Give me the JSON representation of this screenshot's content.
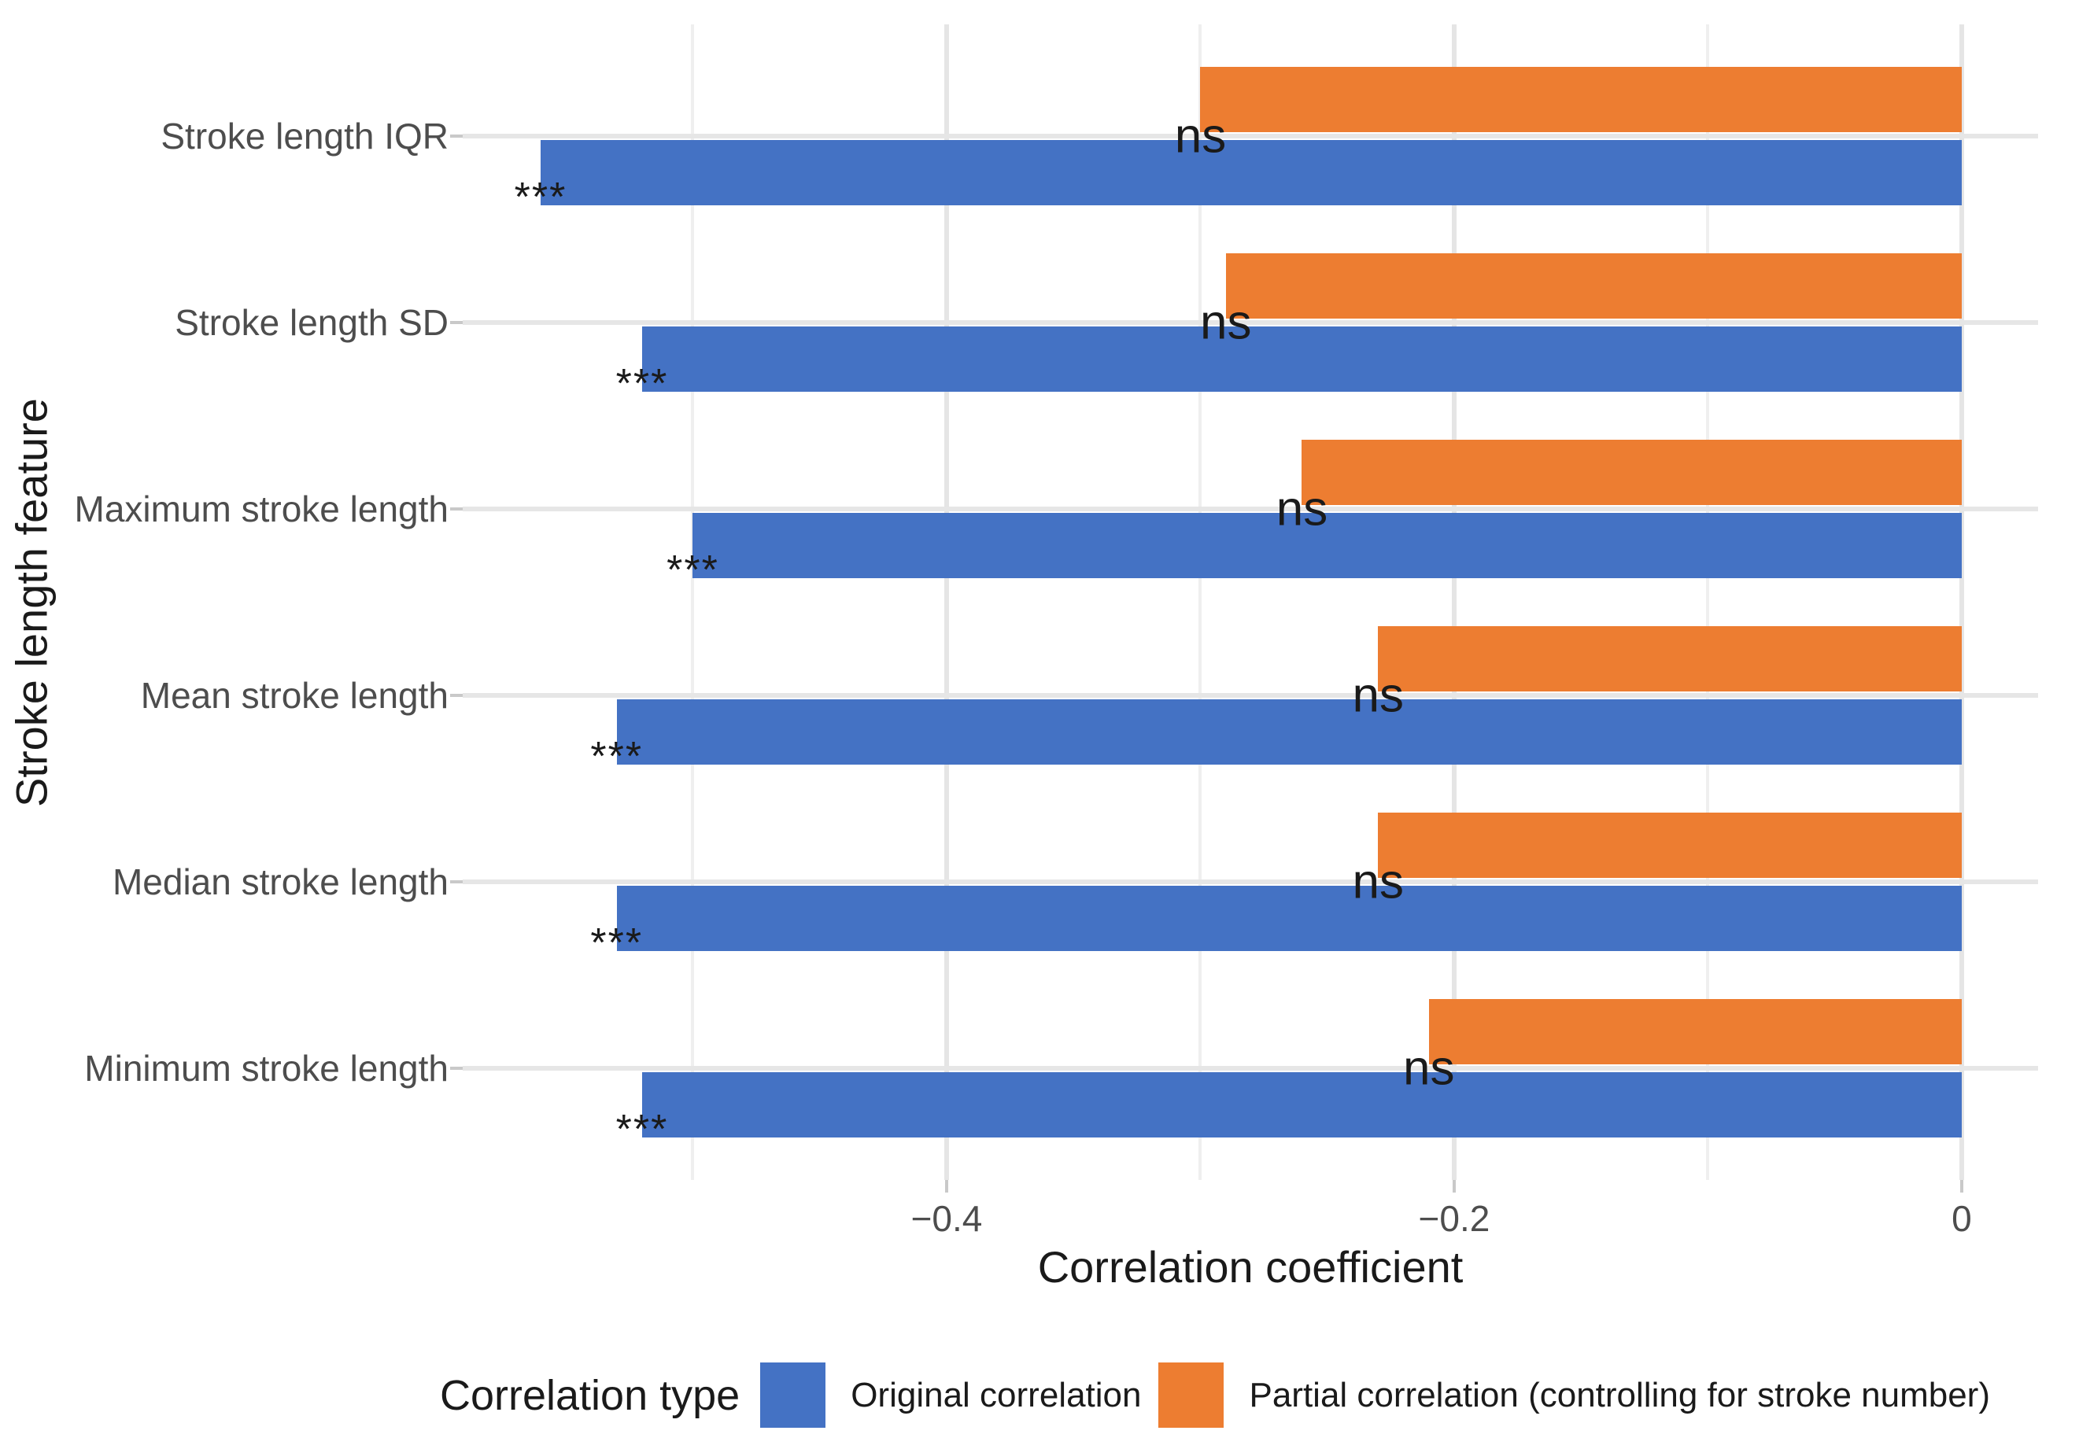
{
  "chart_data": {
    "type": "bar",
    "orientation": "horizontal",
    "categories": [
      "Stroke length IQR",
      "Stroke length SD",
      "Maximum stroke length",
      "Mean stroke length",
      "Median stroke length",
      "Minimum stroke length"
    ],
    "series": [
      {
        "name": "Original correlation",
        "color": "#4472C4",
        "values": [
          -0.56,
          -0.52,
          -0.5,
          -0.53,
          -0.53,
          -0.52
        ],
        "significance": [
          "***",
          "***",
          "***",
          "***",
          "***",
          "***"
        ]
      },
      {
        "name": "Partial correlation (controlling for stroke number)",
        "color": "#ED7D31",
        "values": [
          -0.3,
          -0.29,
          -0.26,
          -0.23,
          -0.23,
          -0.21
        ],
        "significance": [
          "ns",
          "ns",
          "ns",
          "ns",
          "ns",
          "ns"
        ]
      }
    ],
    "xlabel": "Correlation coefficient",
    "ylabel": "Stroke length feature",
    "xlim": [
      -0.5907,
      0.0301
    ],
    "x_major_ticks": [
      -0.4,
      -0.2,
      0
    ],
    "x_tick_labels": [
      "−0.4",
      "−0.2",
      "0"
    ],
    "x_minor_ticks": [
      -0.5,
      -0.3,
      -0.1
    ],
    "grid": "on",
    "legend_position": "bottom",
    "legend_title": "Correlation type"
  },
  "colors": {
    "background": "#FFFFFF",
    "grid_major": "#E5E5E5",
    "grid_minor": "#EFEFEF",
    "tick": "#C9C9C9",
    "axis_text": "#4D4D4D",
    "title_text": "#1A1A1A"
  }
}
